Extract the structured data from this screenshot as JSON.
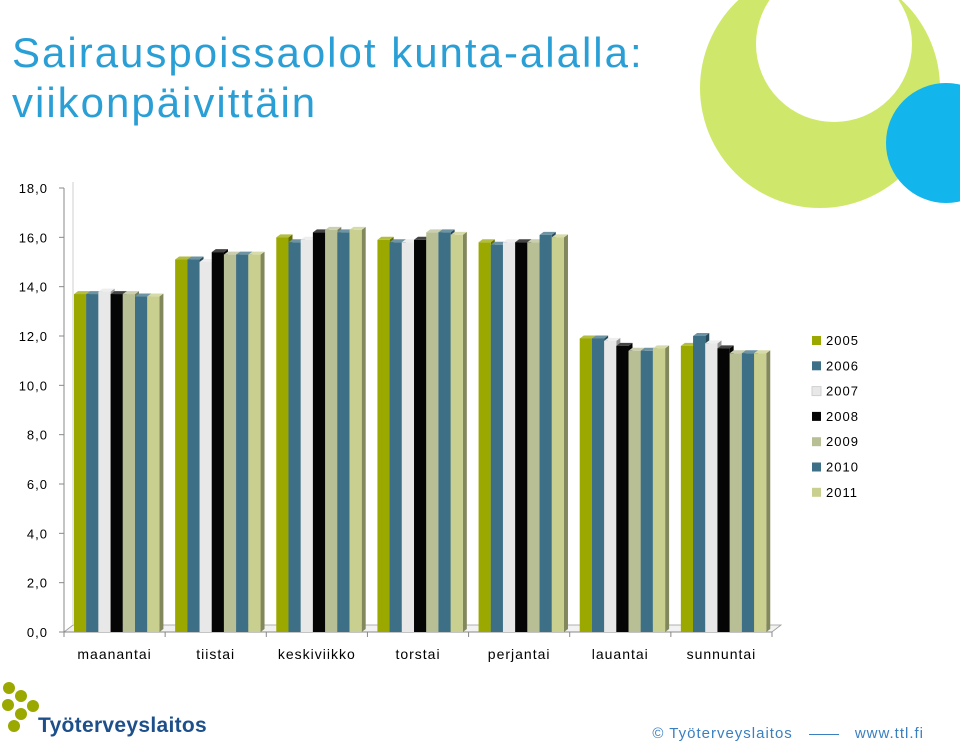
{
  "header": {
    "title_line1": "Sairauspoissaolot kunta-alalla:",
    "title_line2": "viikonpäivittäin"
  },
  "chart_data": {
    "type": "bar",
    "categories": [
      "maanantai",
      "tiistai",
      "keskiviikko",
      "torstai",
      "perjantai",
      "lauantai",
      "sunnuntai"
    ],
    "series": [
      {
        "name": "2005",
        "color": "#9aa800",
        "values": [
          13.7,
          15.1,
          16.0,
          15.9,
          15.8,
          11.9,
          11.6
        ]
      },
      {
        "name": "2006",
        "color": "#3d7086",
        "values": [
          13.7,
          15.1,
          15.8,
          15.8,
          15.7,
          11.9,
          12.0
        ]
      },
      {
        "name": "2007",
        "color": "#e8e8e8",
        "values": [
          13.8,
          15.0,
          15.9,
          15.8,
          15.8,
          11.8,
          11.7
        ]
      },
      {
        "name": "2008",
        "color": "#050505",
        "values": [
          13.7,
          15.4,
          16.2,
          15.9,
          15.8,
          11.6,
          11.5
        ]
      },
      {
        "name": "2009",
        "color": "#b9bf95",
        "values": [
          13.7,
          15.3,
          16.3,
          16.2,
          15.8,
          11.4,
          11.3
        ]
      },
      {
        "name": "2010",
        "color": "#3d7086",
        "values": [
          13.6,
          15.3,
          16.2,
          16.2,
          16.1,
          11.4,
          11.3
        ]
      },
      {
        "name": "2011",
        "color": "#c9cf8e",
        "values": [
          13.6,
          15.3,
          16.3,
          16.1,
          16.0,
          11.5,
          11.3
        ]
      }
    ],
    "yticks": [
      "0,0",
      "2,0",
      "4,0",
      "6,0",
      "8,0",
      "10,0",
      "12,0",
      "14,0",
      "16,0",
      "18,0"
    ],
    "ylim": [
      0,
      18
    ],
    "legend": "right",
    "grid": false
  },
  "footer": {
    "copyright": "© Työterveyslaitos",
    "url": "www.ttl.fi"
  },
  "logo": {
    "text": "Työterveyslaitos",
    "mark_color": "#9aa800",
    "text_color": "#1d4f8a"
  },
  "decor": {
    "circle_green": "#cfe86b",
    "circle_blue": "#12b6ec"
  }
}
